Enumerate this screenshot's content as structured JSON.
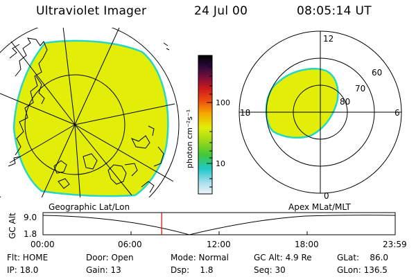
{
  "header": {
    "title": "Ultraviolet Imager",
    "date": "24 Jul 00",
    "time": "08:05:14 UT"
  },
  "colorbar": {
    "unit_label": "photon cm⁻²s⁻¹",
    "ticks": [
      "100",
      "10"
    ]
  },
  "polar_plot": {
    "mlt_labels": {
      "top": "12",
      "left": "18",
      "right": "6",
      "bottom": "0"
    },
    "lat_labels": [
      "60",
      "70",
      "80"
    ]
  },
  "timeline": {
    "left_label": "Geographic Lat/Lon",
    "right_label": "Apex MLat/MLT",
    "axis_label": "GC Alt",
    "y_ticks": [
      "9.0",
      "1.8"
    ],
    "x_ticks": [
      "00:00",
      "06:00",
      "12:00",
      "18:00",
      "23:59"
    ],
    "marker_time": "08:05",
    "marker_color": "#e00000"
  },
  "info": {
    "flt": "Flt: HOME",
    "ip": "IP: 18.0",
    "door": "Door: Open",
    "gain": "Gain: 13",
    "mode": "Mode: Normal",
    "dsp": "Dsp:    1.8",
    "gc_alt": "GC Alt: 4.9 Re",
    "seq": "Seq: 30",
    "glat": "GLat:    86.0",
    "glon": "GLon: 136.5"
  },
  "colors": {
    "aurora_fill": "#e2ee08",
    "aurora_edge": "#27d6c3"
  }
}
